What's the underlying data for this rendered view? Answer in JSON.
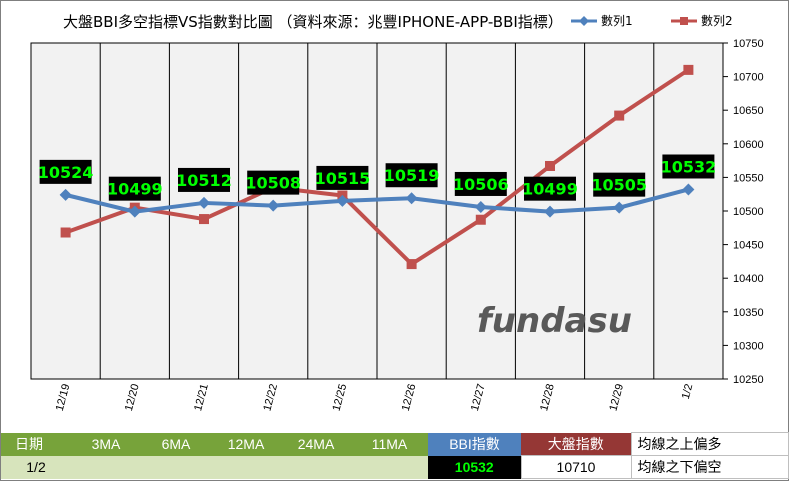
{
  "chart_data": {
    "type": "line",
    "title": "大盤BBI多空指標VS指數對比圖 （資料來源：兆豐IPHONE-APP-BBI指標）",
    "categories": [
      "12/19",
      "12/20",
      "12/21",
      "12/22",
      "12/25",
      "12/26",
      "12/27",
      "12/28",
      "12/29",
      "1/2"
    ],
    "series": [
      {
        "name": "數列1",
        "color": "#4f81bd",
        "marker": "diamond",
        "values": [
          10524,
          10499,
          10512,
          10508,
          10515,
          10519,
          10506,
          10499,
          10505,
          10532
        ]
      },
      {
        "name": "數列2",
        "color": "#c0504d",
        "marker": "square",
        "values": [
          10468,
          10505,
          10488,
          10535,
          10523,
          10421,
          10487,
          10567,
          10642,
          10710
        ]
      }
    ],
    "data_labels": [
      "10524",
      "10499",
      "10512",
      "10508",
      "10515",
      "10519",
      "10506",
      "10499",
      "10505",
      "10532"
    ],
    "y_axis": {
      "side": "right",
      "ylim": [
        10250,
        10750
      ],
      "ticks": [
        "10250",
        "10300",
        "10350",
        "10400",
        "10450",
        "10500",
        "10550",
        "10600",
        "10650",
        "10700",
        "10750"
      ]
    },
    "xlabel": "",
    "ylabel": "",
    "grid": "vertical",
    "legend": "top-right",
    "plot_background": "#f2f2f2",
    "label_background": "#000000",
    "label_color": "#00ff00"
  },
  "watermark": "fundasu",
  "info_table": {
    "headers": [
      "日期",
      "3MA",
      "6MA",
      "12MA",
      "24MA",
      "11MA",
      "BBI指數",
      "大盤指數"
    ],
    "date": "1/2",
    "bbi_value": "10532",
    "index_value": "10710",
    "note_top": "均線之上偏多",
    "note_bottom": "均線之下偏空"
  }
}
